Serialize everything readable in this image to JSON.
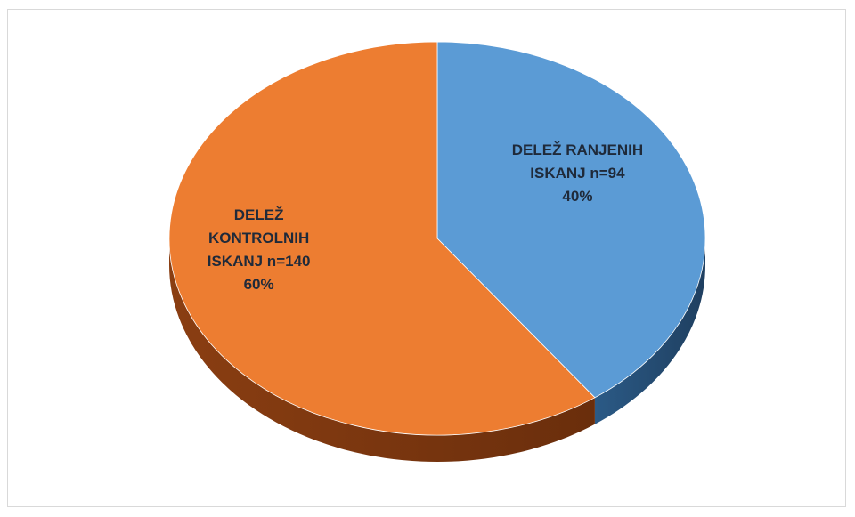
{
  "chart_data": {
    "type": "pie",
    "categories": [
      "DELEŽ RANJENIH ISKANJ n=94",
      "DELEŽ KONTROLNIH ISKANJ n=140"
    ],
    "values": [
      40,
      60
    ],
    "value_labels": [
      "40%",
      "60%"
    ],
    "colors": [
      "#5b9bd5",
      "#ed7d31"
    ]
  }
}
